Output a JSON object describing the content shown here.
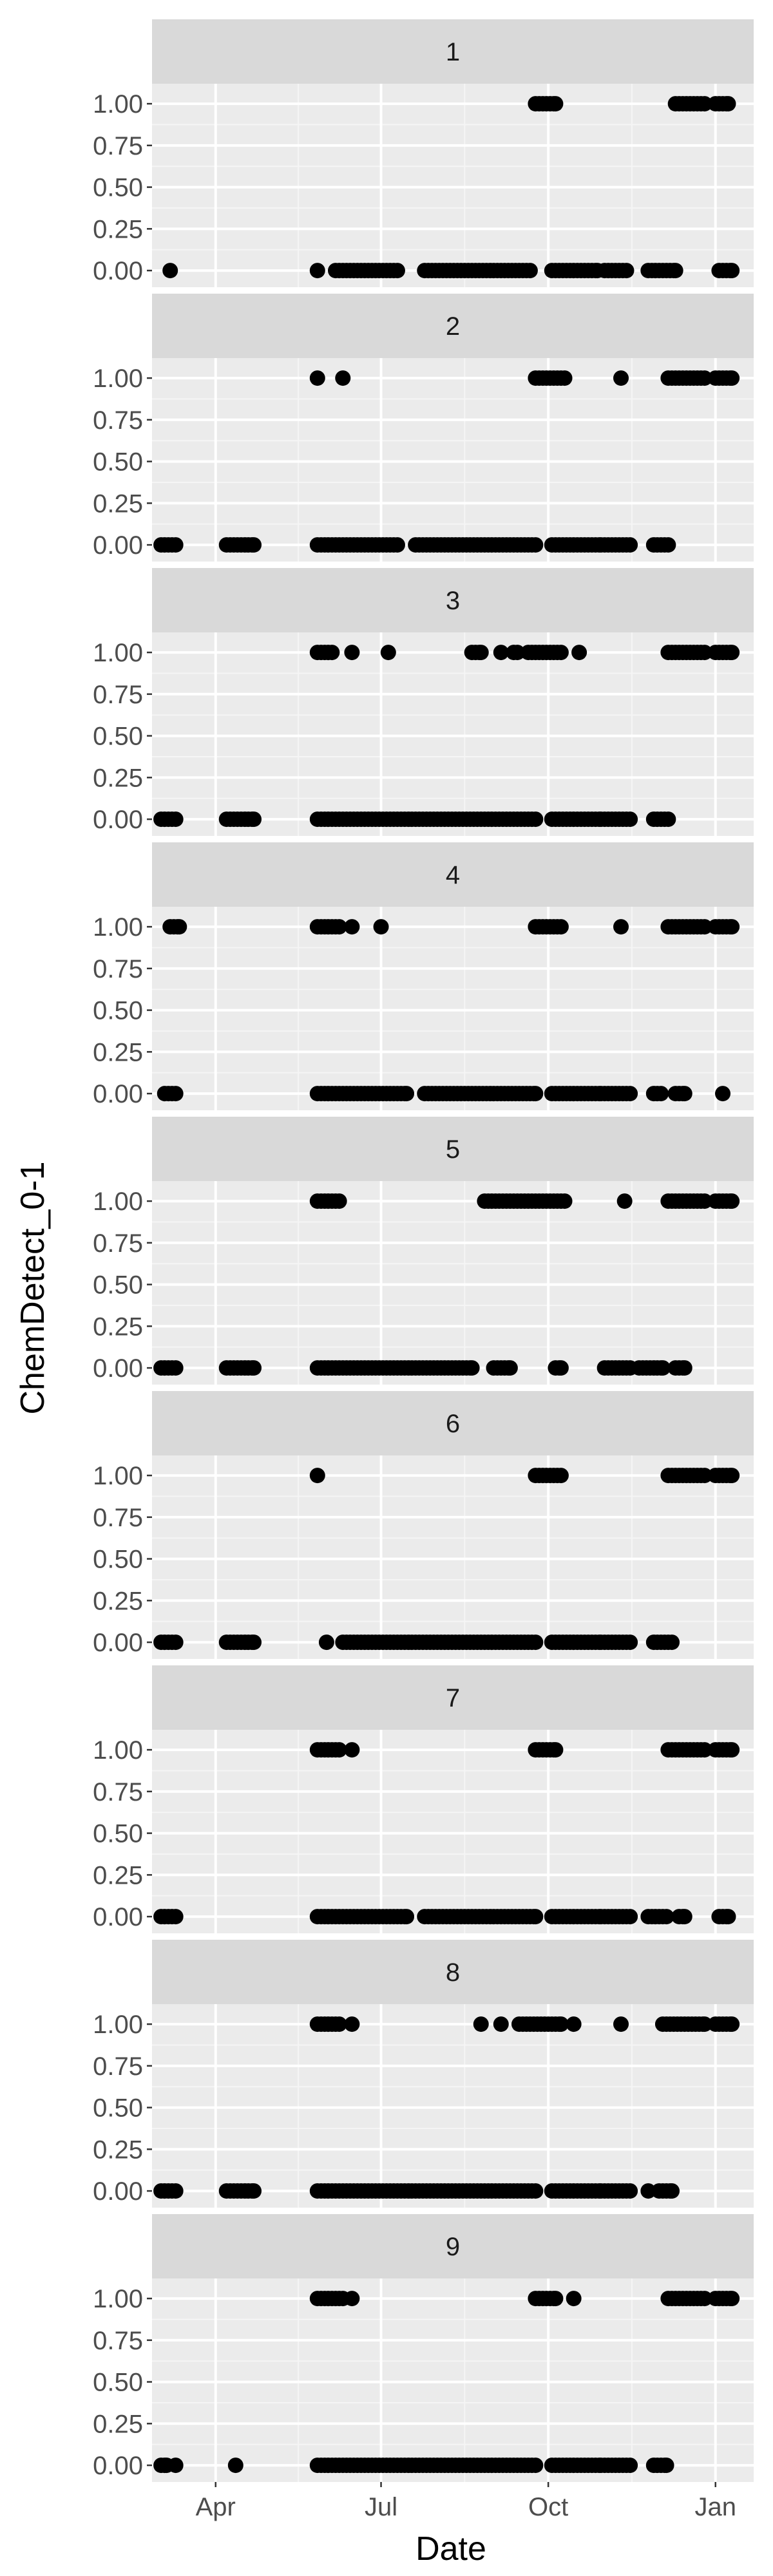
{
  "chart_data": {
    "type": "scatter",
    "facet_by": "panel",
    "xlabel": "Date",
    "ylabel": "ChemDetect_0-1",
    "x_range": [
      "2018-02-25",
      "2019-01-22"
    ],
    "y_range": [
      -0.1,
      1.12
    ],
    "x_ticks": [
      {
        "date": "2018-04-01",
        "label": "Apr"
      },
      {
        "date": "2018-07-01",
        "label": "Jul"
      },
      {
        "date": "2018-10-01",
        "label": "Oct"
      },
      {
        "date": "2019-01-01",
        "label": "Jan"
      }
    ],
    "y_ticks": [
      {
        "value": 0,
        "label": "0.00"
      },
      {
        "value": 0.25,
        "label": "0.25"
      },
      {
        "value": 0.5,
        "label": "0.50"
      },
      {
        "value": 0.75,
        "label": "0.75"
      },
      {
        "value": 1,
        "label": "1.00"
      }
    ],
    "grid": true,
    "legend": "none",
    "panels": [
      {
        "label": "1",
        "ones": [
          [
            "2018-09-24",
            "2018-10-05"
          ],
          [
            "2018-12-10",
            "2018-12-26"
          ],
          [
            "2019-01-01",
            "2019-01-08"
          ]
        ],
        "zeros": [
          [
            "2018-03-07",
            "2018-03-07"
          ],
          [
            "2018-05-27",
            "2018-05-27"
          ],
          [
            "2018-06-06",
            "2018-07-10"
          ],
          [
            "2018-07-25",
            "2018-09-21"
          ],
          [
            "2018-10-03",
            "2018-10-28"
          ],
          [
            "2018-11-01",
            "2018-11-13"
          ],
          [
            "2018-11-25",
            "2018-12-10"
          ],
          [
            "2019-01-03",
            "2019-01-10"
          ]
        ]
      },
      {
        "label": "2",
        "ones": [
          [
            "2018-05-27",
            "2018-05-27"
          ],
          [
            "2018-06-10",
            "2018-06-10"
          ],
          [
            "2018-09-24",
            "2018-10-10"
          ],
          [
            "2018-11-10",
            "2018-11-10"
          ],
          [
            "2018-12-06",
            "2018-12-26"
          ],
          [
            "2019-01-01",
            "2019-01-10"
          ]
        ],
        "zeros": [
          [
            "2018-03-02",
            "2018-03-10"
          ],
          [
            "2018-04-07",
            "2018-04-22"
          ],
          [
            "2018-05-27",
            "2018-07-10"
          ],
          [
            "2018-07-20",
            "2018-09-24"
          ],
          [
            "2018-10-03",
            "2018-10-30"
          ],
          [
            "2018-11-01",
            "2018-11-15"
          ],
          [
            "2018-11-28",
            "2018-12-06"
          ]
        ]
      },
      {
        "label": "3",
        "ones": [
          [
            "2018-05-27",
            "2018-06-04"
          ],
          [
            "2018-06-15",
            "2018-06-15"
          ],
          [
            "2018-07-05",
            "2018-07-05"
          ],
          [
            "2018-08-20",
            "2018-08-25"
          ],
          [
            "2018-09-05",
            "2018-09-05"
          ],
          [
            "2018-09-12",
            "2018-09-14"
          ],
          [
            "2018-09-20",
            "2018-10-08"
          ],
          [
            "2018-10-18",
            "2018-10-18"
          ],
          [
            "2018-12-06",
            "2018-12-26"
          ],
          [
            "2019-01-01",
            "2019-01-10"
          ]
        ],
        "zeros": [
          [
            "2018-03-02",
            "2018-03-10"
          ],
          [
            "2018-04-07",
            "2018-04-22"
          ],
          [
            "2018-05-27",
            "2018-07-18"
          ],
          [
            "2018-07-20",
            "2018-09-24"
          ],
          [
            "2018-10-03",
            "2018-10-30"
          ],
          [
            "2018-11-01",
            "2018-11-15"
          ],
          [
            "2018-11-28",
            "2018-12-06"
          ]
        ]
      },
      {
        "label": "4",
        "ones": [
          [
            "2018-03-07",
            "2018-03-12"
          ],
          [
            "2018-05-27",
            "2018-06-08"
          ],
          [
            "2018-06-15",
            "2018-06-15"
          ],
          [
            "2018-07-01",
            "2018-07-01"
          ],
          [
            "2018-09-24",
            "2018-10-08"
          ],
          [
            "2018-11-10",
            "2018-11-10"
          ],
          [
            "2018-12-06",
            "2018-12-26"
          ],
          [
            "2019-01-01",
            "2019-01-10"
          ]
        ],
        "zeros": [
          [
            "2018-03-04",
            "2018-03-10"
          ],
          [
            "2018-05-27",
            "2018-07-15"
          ],
          [
            "2018-07-25",
            "2018-09-24"
          ],
          [
            "2018-10-03",
            "2018-10-30"
          ],
          [
            "2018-11-01",
            "2018-11-15"
          ],
          [
            "2018-11-28",
            "2018-12-02"
          ],
          [
            "2018-12-10",
            "2018-12-15"
          ],
          [
            "2019-01-05",
            "2019-01-05"
          ]
        ]
      },
      {
        "label": "5",
        "ones": [
          [
            "2018-05-27",
            "2018-06-08"
          ],
          [
            "2018-08-27",
            "2018-10-10"
          ],
          [
            "2018-11-12",
            "2018-11-12"
          ],
          [
            "2018-12-06",
            "2018-12-26"
          ],
          [
            "2019-01-01",
            "2019-01-10"
          ]
        ],
        "zeros": [
          [
            "2018-03-02",
            "2018-03-10"
          ],
          [
            "2018-04-07",
            "2018-04-22"
          ],
          [
            "2018-05-27",
            "2018-07-18"
          ],
          [
            "2018-07-20",
            "2018-08-20"
          ],
          [
            "2018-09-01",
            "2018-09-10"
          ],
          [
            "2018-10-05",
            "2018-10-08"
          ],
          [
            "2018-11-01",
            "2018-11-15"
          ],
          [
            "2018-11-20",
            "2018-12-03"
          ],
          [
            "2018-12-10",
            "2018-12-15"
          ]
        ]
      },
      {
        "label": "6",
        "ones": [
          [
            "2018-05-27",
            "2018-05-27"
          ],
          [
            "2018-09-24",
            "2018-10-08"
          ],
          [
            "2018-12-06",
            "2018-12-26"
          ],
          [
            "2019-01-01",
            "2019-01-10"
          ]
        ],
        "zeros": [
          [
            "2018-03-02",
            "2018-03-10"
          ],
          [
            "2018-04-07",
            "2018-04-22"
          ],
          [
            "2018-06-01",
            "2018-06-01"
          ],
          [
            "2018-06-10",
            "2018-07-18"
          ],
          [
            "2018-07-20",
            "2018-09-24"
          ],
          [
            "2018-10-03",
            "2018-10-30"
          ],
          [
            "2018-11-01",
            "2018-11-15"
          ],
          [
            "2018-11-28",
            "2018-12-08"
          ]
        ]
      },
      {
        "label": "7",
        "ones": [
          [
            "2018-05-27",
            "2018-06-08"
          ],
          [
            "2018-06-15",
            "2018-06-15"
          ],
          [
            "2018-09-24",
            "2018-10-05"
          ],
          [
            "2018-12-06",
            "2018-12-26"
          ],
          [
            "2019-01-01",
            "2019-01-10"
          ]
        ],
        "zeros": [
          [
            "2018-03-02",
            "2018-03-10"
          ],
          [
            "2018-05-27",
            "2018-07-15"
          ],
          [
            "2018-07-25",
            "2018-09-24"
          ],
          [
            "2018-10-03",
            "2018-10-30"
          ],
          [
            "2018-11-01",
            "2018-11-15"
          ],
          [
            "2018-11-25",
            "2018-12-05"
          ],
          [
            "2018-12-12",
            "2018-12-15"
          ],
          [
            "2019-01-03",
            "2019-01-08"
          ]
        ]
      },
      {
        "label": "8",
        "ones": [
          [
            "2018-05-27",
            "2018-06-08"
          ],
          [
            "2018-06-15",
            "2018-06-15"
          ],
          [
            "2018-08-25",
            "2018-08-25"
          ],
          [
            "2018-09-05",
            "2018-09-05"
          ],
          [
            "2018-09-15",
            "2018-10-08"
          ],
          [
            "2018-10-15",
            "2018-10-15"
          ],
          [
            "2018-11-10",
            "2018-11-10"
          ],
          [
            "2018-12-03",
            "2018-12-26"
          ],
          [
            "2019-01-01",
            "2019-01-10"
          ]
        ],
        "zeros": [
          [
            "2018-03-02",
            "2018-03-10"
          ],
          [
            "2018-04-07",
            "2018-04-22"
          ],
          [
            "2018-05-27",
            "2018-07-18"
          ],
          [
            "2018-07-20",
            "2018-09-24"
          ],
          [
            "2018-10-03",
            "2018-10-30"
          ],
          [
            "2018-11-01",
            "2018-11-15"
          ],
          [
            "2018-11-25",
            "2018-11-25"
          ],
          [
            "2018-12-01",
            "2018-12-08"
          ]
        ]
      },
      {
        "label": "9",
        "ones": [
          [
            "2018-05-27",
            "2018-06-10"
          ],
          [
            "2018-06-15",
            "2018-06-15"
          ],
          [
            "2018-09-24",
            "2018-10-05"
          ],
          [
            "2018-10-15",
            "2018-10-15"
          ],
          [
            "2018-12-06",
            "2018-12-26"
          ],
          [
            "2019-01-01",
            "2019-01-10"
          ]
        ],
        "zeros": [
          [
            "2018-03-02",
            "2018-03-05"
          ],
          [
            "2018-03-10",
            "2018-03-10"
          ],
          [
            "2018-04-12",
            "2018-04-12"
          ],
          [
            "2018-05-27",
            "2018-07-18"
          ],
          [
            "2018-07-20",
            "2018-09-24"
          ],
          [
            "2018-10-03",
            "2018-10-30"
          ],
          [
            "2018-11-01",
            "2018-11-15"
          ],
          [
            "2018-11-28",
            "2018-12-05"
          ]
        ]
      }
    ]
  }
}
